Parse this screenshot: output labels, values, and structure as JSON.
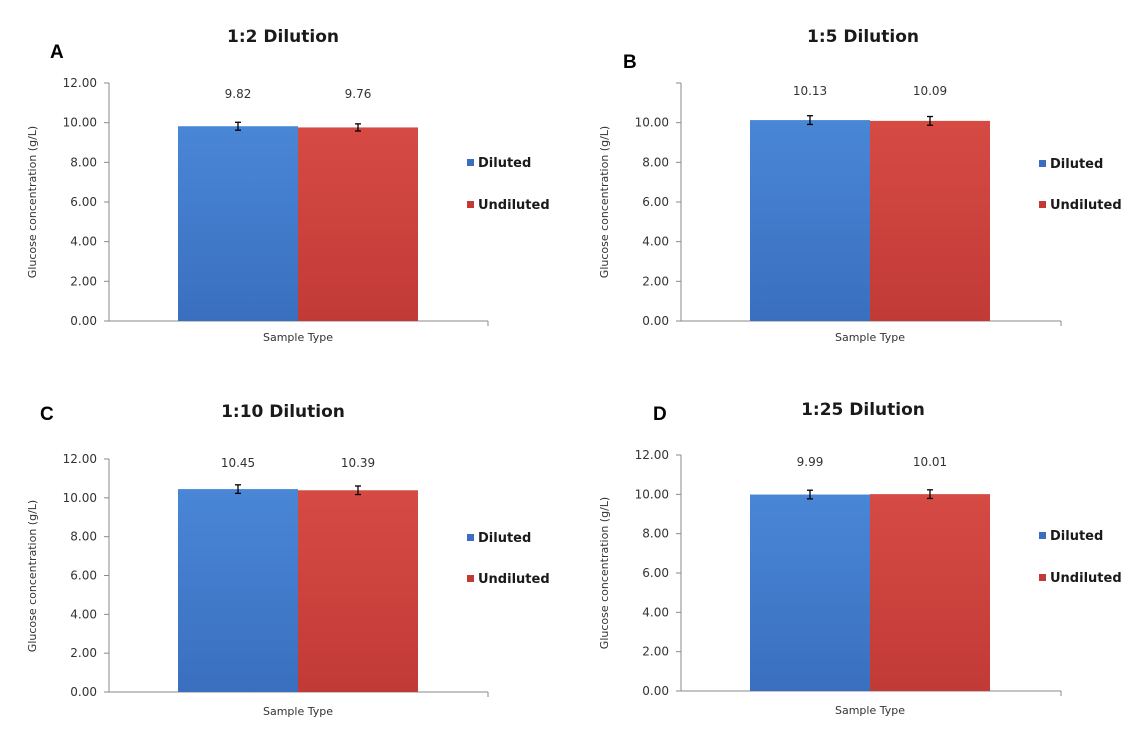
{
  "colors": {
    "diluted": "#3a6fbf",
    "diluted_light": "#4a86d6",
    "undiluted": "#c23a36",
    "undiluted_light": "#d64a44",
    "frame": "#8a8a8a"
  },
  "chart_data": [
    {
      "type": "bar",
      "panel_letter": "A",
      "title": "1:2 Dilution",
      "xlabel": "Sample Type",
      "ylabel": "Glucose concentration (g/L)",
      "ylim": [
        0,
        12
      ],
      "yticks": [
        "0.00",
        "2.00",
        "4.00",
        "6.00",
        "8.00",
        "10.00",
        "12.00"
      ],
      "legend": "right",
      "series": [
        {
          "name": "Diluted",
          "value": 9.82,
          "label": "9.82",
          "error": 0.2
        },
        {
          "name": "Undiluted",
          "value": 9.76,
          "label": "9.76",
          "error": 0.18
        }
      ]
    },
    {
      "type": "bar",
      "panel_letter": "B",
      "title": "1:5 Dilution",
      "xlabel": "Sample Type",
      "ylabel": "Glucose concentration (g/L)",
      "ylim": [
        0,
        12
      ],
      "yticks": [
        "0.00",
        "2.00",
        "4.00",
        "6.00",
        "8.00",
        "10.00",
        ""
      ],
      "legend": "right",
      "series": [
        {
          "name": "Diluted",
          "value": 10.13,
          "label": "10.13",
          "error": 0.22
        },
        {
          "name": "Undiluted",
          "value": 10.09,
          "label": "10.09",
          "error": 0.22
        }
      ]
    },
    {
      "type": "bar",
      "panel_letter": "C",
      "title": "1:10 Dilution",
      "xlabel": "Sample Type",
      "ylabel": "Glucose concentration (g/L)",
      "ylim": [
        0,
        12
      ],
      "yticks": [
        "0.00",
        "2.00",
        "4.00",
        "6.00",
        "8.00",
        "10.00",
        "12.00"
      ],
      "legend": "right",
      "series": [
        {
          "name": "Diluted",
          "value": 10.45,
          "label": "10.45",
          "error": 0.22
        },
        {
          "name": "Undiluted",
          "value": 10.39,
          "label": "10.39",
          "error": 0.22
        }
      ]
    },
    {
      "type": "bar",
      "panel_letter": "D",
      "title": "1:25 Dilution",
      "xlabel": "Sample Type",
      "ylabel": "Glucose concentration (g/L)",
      "ylim": [
        0,
        12
      ],
      "yticks": [
        "0.00",
        "2.00",
        "4.00",
        "6.00",
        "8.00",
        "10.00",
        "12.00"
      ],
      "legend": "right",
      "series": [
        {
          "name": "Diluted",
          "value": 9.99,
          "label": "9.99",
          "error": 0.22
        },
        {
          "name": "Undiluted",
          "value": 10.01,
          "label": "10.01",
          "error": 0.22
        }
      ]
    }
  ]
}
